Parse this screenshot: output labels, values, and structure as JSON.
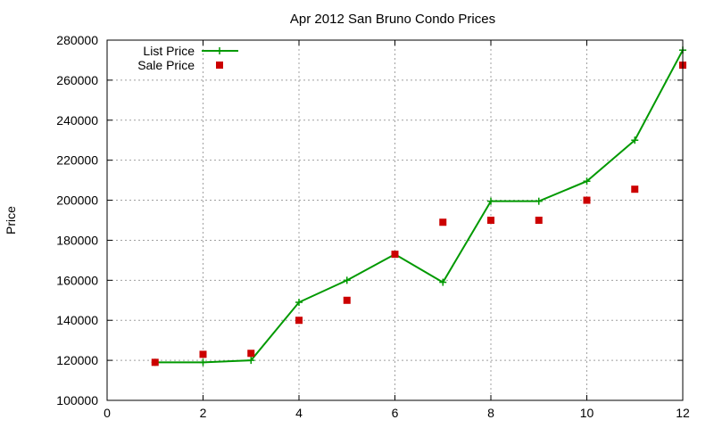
{
  "chart_data": {
    "type": "line",
    "title": "Apr 2012 San Bruno Condo Prices",
    "xlabel": "",
    "ylabel": "Price",
    "xlim": [
      0,
      12
    ],
    "ylim": [
      100000,
      280000
    ],
    "xticks": [
      "0",
      "2",
      "4",
      "6",
      "8",
      "10",
      "12"
    ],
    "yticks": [
      "100000",
      "120000",
      "140000",
      "160000",
      "180000",
      "200000",
      "220000",
      "240000",
      "260000",
      "280000"
    ],
    "grid": true,
    "legend_position": "top-left",
    "series": [
      {
        "name": "List Price",
        "kind": "line-with-plus-markers",
        "color": "#009900",
        "x": [
          1,
          2,
          3,
          4,
          5,
          6,
          7,
          8,
          9,
          10,
          11,
          12
        ],
        "y": [
          119000,
          119000,
          120000,
          149000,
          160000,
          173000,
          159000,
          199500,
          199500,
          209500,
          230000,
          275000
        ]
      },
      {
        "name": "Sale Price",
        "kind": "square-points",
        "color": "#cc0000",
        "x": [
          1,
          2,
          3,
          4,
          5,
          6,
          7,
          8,
          9,
          10,
          11,
          12
        ],
        "y": [
          119000,
          123000,
          123500,
          140000,
          150000,
          173000,
          189000,
          190000,
          190000,
          200000,
          205500,
          267500
        ]
      }
    ]
  }
}
